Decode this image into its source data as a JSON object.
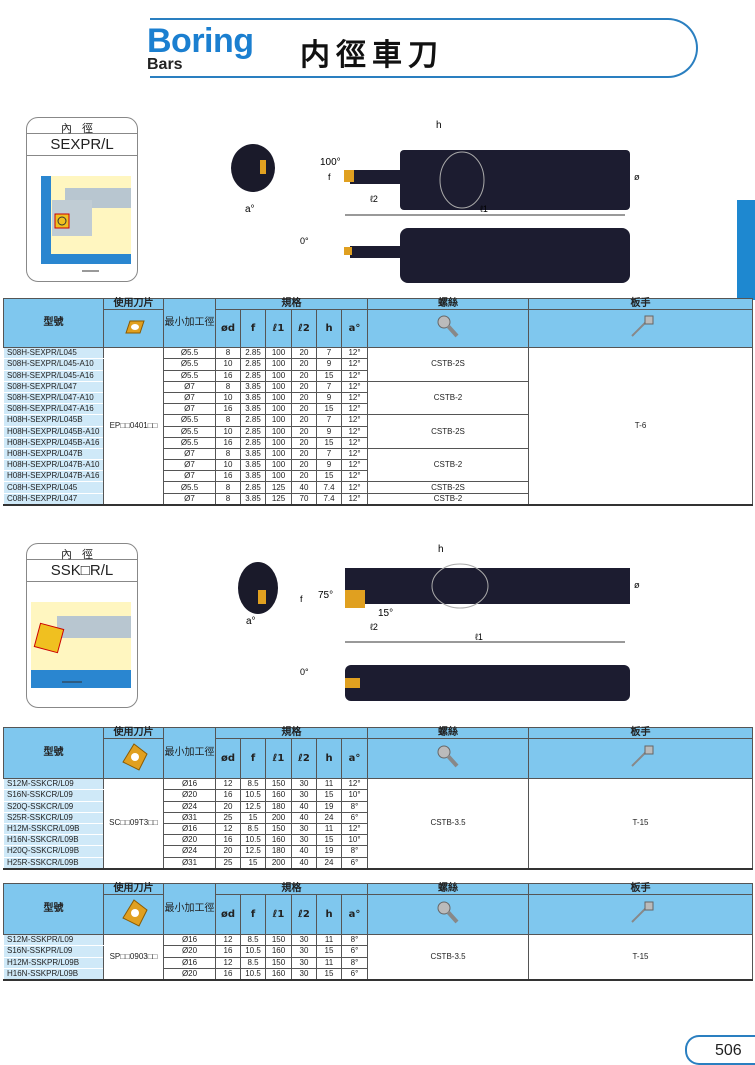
{
  "header": {
    "title_en": "Boring",
    "subtitle_en": "Bars",
    "title_cn": "内徑車刀"
  },
  "page_number": "506",
  "colors": {
    "accent": "#1b7fd0",
    "table_header": "#7fc7ee",
    "model_cell": "#cfe9f8",
    "insert": "#e0a020"
  },
  "section1": {
    "card": {
      "category": "內徑",
      "type": "SEXPR/L"
    },
    "diagram": {
      "angle_approach": "100°",
      "angle_zero": "0°",
      "labels": {
        "h": "h",
        "f": "f",
        "a": "a°",
        "l1": "ℓ1",
        "l2": "ℓ2",
        "d": "ød"
      }
    },
    "table": {
      "headers": {
        "model": "型號",
        "insert": "使用刀片",
        "min_bore": "最小加工徑",
        "spec": "規格",
        "screw": "螺絲",
        "wrench": "板手",
        "d": "ød",
        "f": "f",
        "l1": "ℓ1",
        "l2": "ℓ2",
        "h": "h",
        "a": "a°"
      },
      "insert": "EP□□0401□□",
      "wrench": "T-6",
      "rows": [
        [
          "S08H-SEXPR/L045",
          "Ø5.5",
          "8",
          "2.85",
          "100",
          "20",
          "7",
          "12°"
        ],
        [
          "S08H-SEXPR/L045-A10",
          "Ø5.5",
          "10",
          "2.85",
          "100",
          "20",
          "9",
          "12°"
        ],
        [
          "S08H-SEXPR/L045-A16",
          "Ø5.5",
          "16",
          "2.85",
          "100",
          "20",
          "15",
          "12°"
        ],
        [
          "S08H-SEXPR/L047",
          "Ø7",
          "8",
          "3.85",
          "100",
          "20",
          "7",
          "12°"
        ],
        [
          "S08H-SEXPR/L047-A10",
          "Ø7",
          "10",
          "3.85",
          "100",
          "20",
          "9",
          "12°"
        ],
        [
          "S08H-SEXPR/L047-A16",
          "Ø7",
          "16",
          "3.85",
          "100",
          "20",
          "15",
          "12°"
        ],
        [
          "H08H-SEXPR/L045B",
          "Ø5.5",
          "8",
          "2.85",
          "100",
          "20",
          "7",
          "12°"
        ],
        [
          "H08H-SEXPR/L045B-A10",
          "Ø5.5",
          "10",
          "2.85",
          "100",
          "20",
          "9",
          "12°"
        ],
        [
          "H08H-SEXPR/L045B-A16",
          "Ø5.5",
          "16",
          "2.85",
          "100",
          "20",
          "15",
          "12°"
        ],
        [
          "H08H-SEXPR/L047B",
          "Ø7",
          "8",
          "3.85",
          "100",
          "20",
          "7",
          "12°"
        ],
        [
          "H08H-SEXPR/L047B-A10",
          "Ø7",
          "10",
          "3.85",
          "100",
          "20",
          "9",
          "12°"
        ],
        [
          "H08H-SEXPR/L047B-A16",
          "Ø7",
          "16",
          "3.85",
          "100",
          "20",
          "15",
          "12°"
        ],
        [
          "C08H-SEXPR/L045",
          "Ø5.5",
          "8",
          "2.85",
          "125",
          "40",
          "7.4",
          "12°"
        ],
        [
          "C08H-SEXPR/L047",
          "Ø7",
          "8",
          "3.85",
          "125",
          "70",
          "7.4",
          "12°"
        ]
      ],
      "screws": [
        {
          "label": "CSTB-2S",
          "span": 3
        },
        {
          "label": "CSTB-2",
          "span": 3
        },
        {
          "label": "CSTB-2S",
          "span": 3
        },
        {
          "label": "CSTB-2",
          "span": 3
        },
        {
          "label": "CSTB-2S",
          "span": 1
        },
        {
          "label": "CSTB-2",
          "span": 1
        }
      ]
    }
  },
  "section2": {
    "card": {
      "category": "內徑",
      "type": "SSK□R/L"
    },
    "diagram": {
      "angle_approach": "75°",
      "angle_side": "15°",
      "angle_zero": "0°",
      "labels": {
        "h": "h",
        "f": "f",
        "a": "a°",
        "l1": "ℓ1",
        "l2": "ℓ2",
        "d": "ød"
      }
    },
    "table": {
      "headers": {
        "model": "型號",
        "insert": "使用刀片",
        "min_bore": "最小加工徑",
        "spec": "規格",
        "screw": "螺絲",
        "wrench": "板手",
        "d": "ød",
        "f": "f",
        "l1": "ℓ1",
        "l2": "ℓ2",
        "h": "h",
        "a": "a°"
      },
      "insert": "SC□□09T3□□",
      "wrench": "T-15",
      "rows": [
        [
          "S12M-SSKCR/L09",
          "Ø16",
          "12",
          "8.5",
          "150",
          "30",
          "11",
          "12°"
        ],
        [
          "S16N-SSKCR/L09",
          "Ø20",
          "16",
          "10.5",
          "160",
          "30",
          "15",
          "10°"
        ],
        [
          "S20Q-SSKCR/L09",
          "Ø24",
          "20",
          "12.5",
          "180",
          "40",
          "19",
          "8°"
        ],
        [
          "S25R-SSKCR/L09",
          "Ø31",
          "25",
          "15",
          "200",
          "40",
          "24",
          "6°"
        ],
        [
          "H12M-SSKCR/L09B",
          "Ø16",
          "12",
          "8.5",
          "150",
          "30",
          "11",
          "12°"
        ],
        [
          "H16N-SSKCR/L09B",
          "Ø20",
          "16",
          "10.5",
          "160",
          "30",
          "15",
          "10°"
        ],
        [
          "H20Q-SSKCR/L09B",
          "Ø24",
          "20",
          "12.5",
          "180",
          "40",
          "19",
          "8°"
        ],
        [
          "H25R-SSKCR/L09B",
          "Ø31",
          "25",
          "15",
          "200",
          "40",
          "24",
          "6°"
        ]
      ],
      "screws": [
        {
          "label": "CSTB-3.5",
          "span": 8
        }
      ]
    }
  },
  "section3": {
    "table": {
      "headers": {
        "model": "型號",
        "insert": "使用刀片",
        "min_bore": "最小加工徑",
        "spec": "規格",
        "screw": "螺絲",
        "wrench": "板手",
        "d": "ød",
        "f": "f",
        "l1": "ℓ1",
        "l2": "ℓ2",
        "h": "h",
        "a": "a°"
      },
      "insert": "SP□□0903□□",
      "wrench": "T-15",
      "rows": [
        [
          "S12M-SSKPR/L09",
          "Ø16",
          "12",
          "8.5",
          "150",
          "30",
          "11",
          "8°"
        ],
        [
          "S16N-SSKPR/L09",
          "Ø20",
          "16",
          "10.5",
          "160",
          "30",
          "15",
          "6°"
        ],
        [
          "H12M-SSKPR/L09B",
          "Ø16",
          "12",
          "8.5",
          "150",
          "30",
          "11",
          "8°"
        ],
        [
          "H16N-SSKPR/L09B",
          "Ø20",
          "16",
          "10.5",
          "160",
          "30",
          "15",
          "6°"
        ]
      ],
      "screws": [
        {
          "label": "CSTB-3.5",
          "span": 4
        }
      ]
    }
  }
}
